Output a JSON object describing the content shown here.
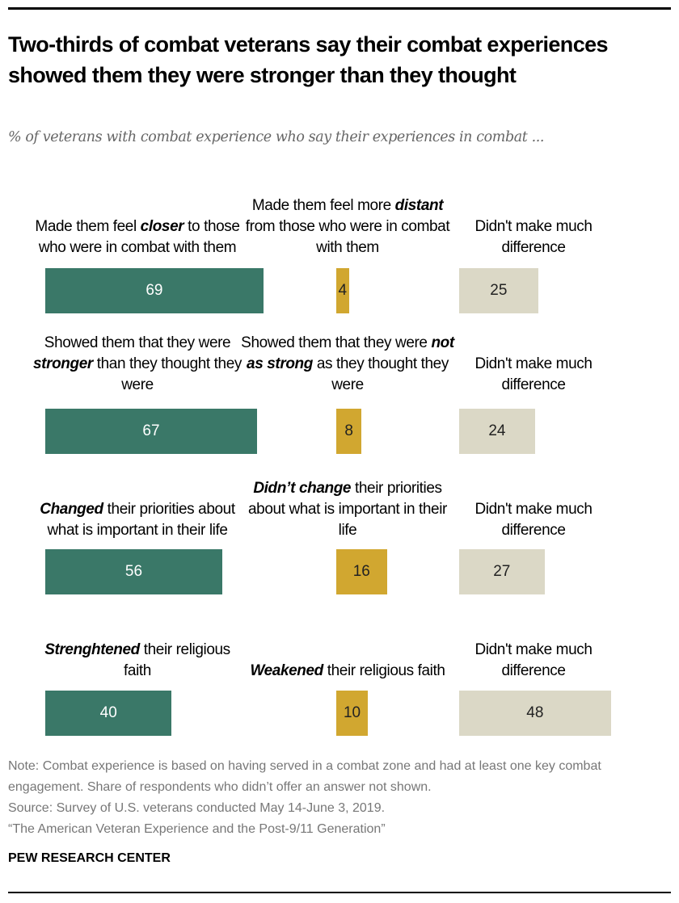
{
  "title": "Two-thirds of combat veterans say their combat experiences showed them they were stronger than they thought",
  "subtitle": "% of veterans with combat experience who say their experiences in combat ...",
  "colors": {
    "positive": "#3a7868",
    "negative": "#d1a730",
    "neutral": "#dbd8c6"
  },
  "chart_data": {
    "type": "bar",
    "title": "Two-thirds of combat veterans say their combat experiences showed them they were stronger than they thought",
    "xlim": [
      0,
      100
    ],
    "rows": [
      {
        "labels": [
          {
            "pre": "Made them feel ",
            "em": "closer",
            "post": " to those who were in combat with them"
          },
          {
            "pre": "Made them feel more ",
            "em": "distant",
            "post": " from those who were in combat with them"
          },
          {
            "pre": "Didn't make much difference",
            "em": "",
            "post": ""
          }
        ],
        "values": [
          69,
          4,
          25
        ]
      },
      {
        "labels": [
          {
            "pre": "Showed them that they were ",
            "em": "stronger",
            "post": " than they thought they were"
          },
          {
            "pre": "Showed them that they were ",
            "em": "not as strong",
            "post": " as they thought they were"
          },
          {
            "pre": "Didn't make much difference",
            "em": "",
            "post": ""
          }
        ],
        "values": [
          67,
          8,
          24
        ]
      },
      {
        "labels": [
          {
            "pre": "",
            "em": "Changed",
            "post": " their priorities about what is important in their life"
          },
          {
            "pre": "",
            "em": "Didn’t change",
            "post": " their priorities about what is important in their life"
          },
          {
            "pre": "Didn't make much difference",
            "em": "",
            "post": ""
          }
        ],
        "values": [
          56,
          16,
          27
        ]
      },
      {
        "labels": [
          {
            "pre": "",
            "em": "Strenghtened",
            "post": " their religious faith"
          },
          {
            "pre": "",
            "em": "Weakened",
            "post": " their religious faith"
          },
          {
            "pre": "Didn't make much difference",
            "em": "",
            "post": ""
          }
        ],
        "values": [
          40,
          10,
          48
        ]
      }
    ]
  },
  "notes": {
    "note": "Note: Combat experience is based on having served in a combat zone and had at least one key combat engagement. Share of respondents who didn’t offer an answer not shown.",
    "source": "Source: Survey of U.S. veterans conducted May 14-June 3, 2019.",
    "report": "“The American Veteran Experience and the Post-9/11 Generation”"
  },
  "brand": "PEW RESEARCH CENTER"
}
